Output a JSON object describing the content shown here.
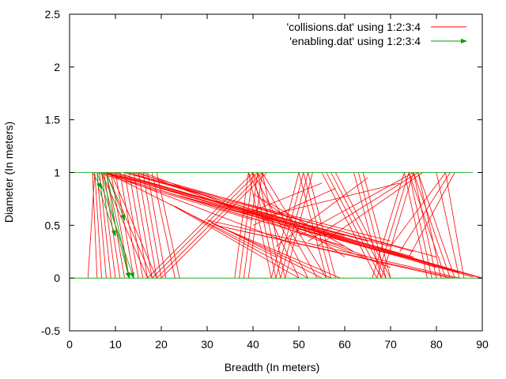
{
  "chart_data": {
    "type": "line",
    "title": "",
    "xlabel": "Breadth (In meters)",
    "ylabel": "Diameter (In meters)",
    "xlim": [
      0,
      90
    ],
    "ylim": [
      -0.5,
      2.5
    ],
    "xticks": [
      0,
      10,
      20,
      30,
      40,
      50,
      60,
      70,
      80,
      90
    ],
    "yticks": [
      -0.5,
      0,
      0.5,
      1,
      1.5,
      2,
      2.5
    ],
    "xtick_labels": [
      "0",
      "10",
      "20",
      "30",
      "40",
      "50",
      "60",
      "70",
      "80",
      "90"
    ],
    "ytick_labels": [
      "-0.5",
      "0",
      "0.5",
      "1",
      "1.5",
      "2",
      "2.5"
    ],
    "grid": false,
    "legend_position": "top-right",
    "series": [
      {
        "name": "'collisions.dat' using 1:2:3:4",
        "color": "#ff0000",
        "style": "vectors-no-head",
        "segments": [
          [
            4,
            0,
            5.5,
            1
          ],
          [
            5,
            1,
            6,
            0
          ],
          [
            5.5,
            1,
            7,
            0
          ],
          [
            6,
            1,
            8,
            0
          ],
          [
            6.5,
            1,
            9,
            0
          ],
          [
            7,
            1,
            10,
            0
          ],
          [
            7.5,
            1,
            11,
            0
          ],
          [
            8,
            1,
            12,
            0
          ],
          [
            9,
            1,
            13,
            0
          ],
          [
            10,
            1,
            14,
            0
          ],
          [
            11,
            1,
            15,
            0
          ],
          [
            12,
            1,
            16,
            0
          ],
          [
            13,
            1,
            17,
            0
          ],
          [
            14,
            1,
            18,
            0
          ],
          [
            15,
            1,
            19,
            0
          ],
          [
            16,
            1,
            20,
            0
          ],
          [
            17,
            1,
            21,
            0
          ],
          [
            18,
            1,
            23,
            0
          ],
          [
            19,
            1,
            24,
            0
          ],
          [
            7,
            1,
            17,
            0
          ],
          [
            8,
            1,
            18,
            0
          ],
          [
            9,
            1,
            19,
            0
          ],
          [
            17,
            0,
            40,
            1
          ],
          [
            18,
            0,
            41,
            1
          ],
          [
            19,
            0,
            42,
            1
          ],
          [
            20,
            0,
            43,
            1
          ],
          [
            8,
            1,
            45,
            0.2
          ],
          [
            8,
            1,
            50,
            0.3
          ],
          [
            8,
            1,
            55,
            0.4
          ],
          [
            7,
            1,
            60,
            0.3
          ],
          [
            7,
            1,
            65,
            0.35
          ],
          [
            8,
            1,
            70,
            0.3
          ],
          [
            9,
            1,
            75,
            0.2
          ],
          [
            10,
            1,
            80,
            0.1
          ],
          [
            10,
            1,
            85,
            0.05
          ],
          [
            10,
            1,
            90,
            0
          ],
          [
            12,
            1,
            60,
            0.4
          ],
          [
            12,
            1,
            70,
            0.35
          ],
          [
            12,
            1,
            80,
            0.2
          ],
          [
            13,
            1,
            88,
            0.02
          ],
          [
            14,
            1,
            75,
            0.25
          ],
          [
            15,
            1,
            70,
            0.1
          ],
          [
            16,
            1,
            65,
            0.2
          ],
          [
            6,
            1,
            40,
            0.55
          ],
          [
            7,
            1,
            45,
            0.5
          ],
          [
            8,
            1,
            50,
            0.48
          ],
          [
            20,
            0.85,
            90,
            0
          ],
          [
            22,
            0.8,
            89,
            0.01
          ],
          [
            24,
            0.78,
            88,
            0.01
          ],
          [
            30,
            0.55,
            85,
            0
          ],
          [
            32,
            0.5,
            84,
            0
          ],
          [
            34,
            0.48,
            83,
            0
          ],
          [
            36,
            0,
            39,
            1
          ],
          [
            37,
            0,
            40,
            1
          ],
          [
            38,
            0,
            41,
            1
          ],
          [
            39,
            0,
            42,
            1
          ],
          [
            39,
            1,
            44,
            0
          ],
          [
            40,
            1,
            45,
            0
          ],
          [
            41,
            1,
            46,
            0
          ],
          [
            42,
            1,
            47,
            0
          ],
          [
            39,
            1,
            50,
            0
          ],
          [
            40,
            1,
            52,
            0
          ],
          [
            41,
            1,
            54,
            0
          ],
          [
            42,
            1,
            56,
            0
          ],
          [
            44,
            0,
            50,
            1
          ],
          [
            45,
            0,
            51,
            1
          ],
          [
            46,
            0,
            52,
            1
          ],
          [
            47,
            0,
            53,
            1
          ],
          [
            50,
            1,
            56,
            0
          ],
          [
            51,
            1,
            57,
            0
          ],
          [
            52,
            1,
            58,
            0
          ],
          [
            50,
            0.4,
            75,
            1
          ],
          [
            52,
            0.35,
            76,
            1
          ],
          [
            54,
            0.3,
            77,
            1
          ],
          [
            55,
            1,
            67,
            0
          ],
          [
            56,
            1,
            68,
            0
          ],
          [
            57,
            1,
            69,
            0
          ],
          [
            58,
            1,
            70,
            0
          ],
          [
            62,
            1,
            68,
            0
          ],
          [
            63,
            1,
            69,
            0
          ],
          [
            64,
            1,
            70,
            0
          ],
          [
            66,
            0,
            73,
            1
          ],
          [
            67,
            0,
            74,
            1
          ],
          [
            68,
            0,
            75,
            1
          ],
          [
            73,
            1,
            78,
            0
          ],
          [
            74,
            1,
            79,
            0
          ],
          [
            75,
            1,
            80,
            0
          ],
          [
            76,
            1,
            81,
            0
          ],
          [
            74,
            1,
            82,
            0
          ],
          [
            75,
            1,
            83,
            0
          ],
          [
            76,
            1,
            84,
            0
          ],
          [
            70,
            0.3,
            82,
            1
          ],
          [
            72,
            0.25,
            83,
            1
          ],
          [
            74,
            0.2,
            84,
            1
          ],
          [
            80,
            1,
            85,
            0
          ],
          [
            82,
            1,
            86,
            0
          ],
          [
            40,
            0.8,
            60,
            0.2
          ],
          [
            42,
            0.75,
            62,
            0.25
          ],
          [
            44,
            0.6,
            72,
            0.9
          ],
          [
            38,
            0.6,
            55,
            0.9
          ],
          [
            40,
            0.5,
            58,
            0.85
          ],
          [
            45,
            0.3,
            65,
            0.95
          ],
          [
            30,
            0.55,
            55,
            0
          ],
          [
            31,
            0.52,
            57,
            0
          ],
          [
            32,
            0.5,
            59,
            0
          ],
          [
            22,
            0.7,
            50,
            0
          ],
          [
            23,
            0.68,
            52,
            0
          ]
        ]
      },
      {
        "name": "'enabling.dat' using 1:2:3:4",
        "color": "#00a000",
        "style": "vectors-with-head",
        "segments": [
          [
            0,
            1,
            88,
            1
          ],
          [
            0,
            0,
            90,
            0
          ],
          [
            6,
            1,
            14,
            0
          ],
          [
            7,
            1,
            13,
            0
          ],
          [
            8,
            1,
            13,
            0
          ],
          [
            6,
            0.9,
            10,
            0.4
          ],
          [
            5,
            1,
            7,
            0.85
          ],
          [
            8,
            1,
            12,
            0.55
          ]
        ]
      }
    ]
  }
}
